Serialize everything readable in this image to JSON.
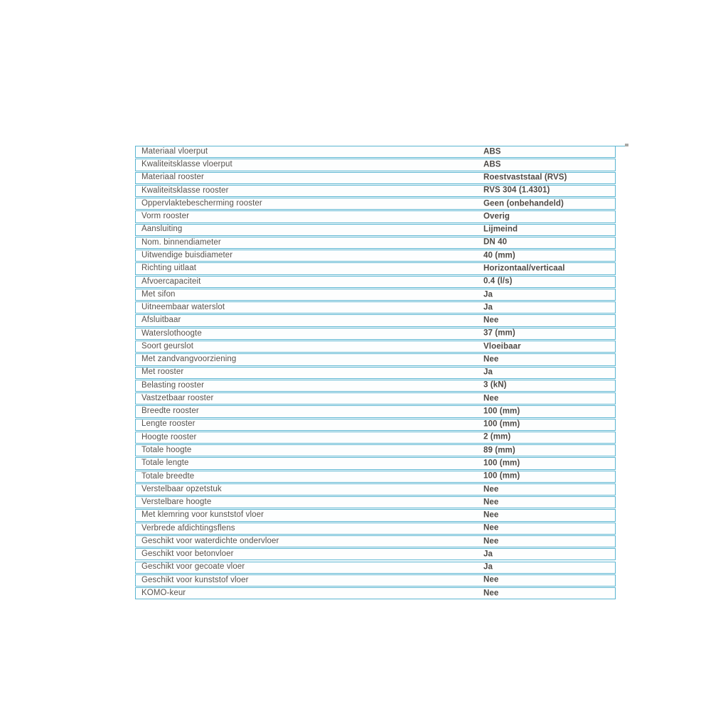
{
  "colors": {
    "background": "#ffffff",
    "border": "#5ab5d1",
    "label_text": "#57524e",
    "value_text": "#4e4a46",
    "tick": "#a8a8a4"
  },
  "table": {
    "description": "product-specification-table",
    "columns": [
      "specification",
      "value"
    ],
    "rows": [
      {
        "label": "Materiaal vloerput",
        "value": "ABS"
      },
      {
        "label": "Kwaliteitsklasse vloerput",
        "value": "ABS"
      },
      {
        "label": "Materiaal rooster",
        "value": "Roestvaststaal (RVS)"
      },
      {
        "label": "Kwaliteitsklasse rooster",
        "value": "RVS 304 (1.4301)"
      },
      {
        "label": "Oppervlaktebescherming rooster",
        "value": "Geen (onbehandeld)"
      },
      {
        "label": "Vorm rooster",
        "value": "Overig"
      },
      {
        "label": "Aansluiting",
        "value": "Lijmeind"
      },
      {
        "label": "Nom. binnendiameter",
        "value": "DN 40"
      },
      {
        "label": "Uitwendige buisdiameter",
        "value": "40 (mm)"
      },
      {
        "label": "Richting uitlaat",
        "value": "Horizontaal/verticaal"
      },
      {
        "label": "Afvoercapaciteit",
        "value": "0.4 (l/s)"
      },
      {
        "label": "Met sifon",
        "value": "Ja"
      },
      {
        "label": "Uitneembaar waterslot",
        "value": "Ja"
      },
      {
        "label": "Afsluitbaar",
        "value": "Nee"
      },
      {
        "label": "Waterslothoogte",
        "value": "37 (mm)"
      },
      {
        "label": "Soort geurslot",
        "value": "Vloeibaar"
      },
      {
        "label": "Met zandvangvoorziening",
        "value": "Nee"
      },
      {
        "label": "Met rooster",
        "value": "Ja"
      },
      {
        "label": "Belasting rooster",
        "value": "3 (kN)"
      },
      {
        "label": "Vastzetbaar rooster",
        "value": "Nee"
      },
      {
        "label": "Breedte rooster",
        "value": "100 (mm)"
      },
      {
        "label": "Lengte rooster",
        "value": "100 (mm)"
      },
      {
        "label": "Hoogte rooster",
        "value": "2 (mm)"
      },
      {
        "label": "Totale hoogte",
        "value": "89 (mm)"
      },
      {
        "label": "Totale lengte",
        "value": "100 (mm)"
      },
      {
        "label": "Totale breedte",
        "value": "100 (mm)"
      },
      {
        "label": "Verstelbaar opzetstuk",
        "value": "Nee"
      },
      {
        "label": "Verstelbare hoogte",
        "value": "Nee"
      },
      {
        "label": "Met klemring voor kunststof vloer",
        "value": "Nee"
      },
      {
        "label": "Verbrede afdichtingsflens",
        "value": "Nee"
      },
      {
        "label": "Geschikt voor waterdichte ondervloer",
        "value": "Nee"
      },
      {
        "label": "Geschikt voor betonvloer",
        "value": "Ja"
      },
      {
        "label": "Geschikt voor gecoate vloer",
        "value": "Ja"
      },
      {
        "label": "Geschikt voor kunststof vloer",
        "value": "Nee"
      },
      {
        "label": "KOMO-keur",
        "value": "Nee"
      }
    ]
  }
}
